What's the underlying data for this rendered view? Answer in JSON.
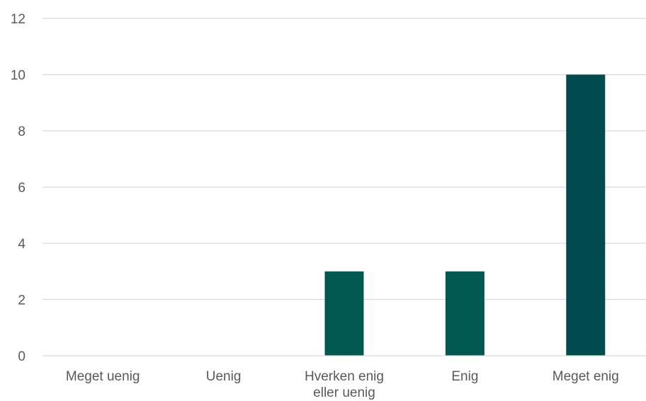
{
  "chart_data": {
    "type": "bar",
    "categories": [
      [
        "Meget uenig"
      ],
      [
        "Uenig"
      ],
      [
        "Hverken enig",
        "eller uenig"
      ],
      [
        "Enig"
      ],
      [
        "Meget enig"
      ]
    ],
    "values": [
      0,
      0,
      3,
      3,
      10
    ],
    "ylim": [
      0,
      12
    ],
    "yticks": [
      "0",
      "2",
      "4",
      "6",
      "8",
      "10",
      "12"
    ],
    "grid": true,
    "legend": "none",
    "colors": [
      "#005850",
      "#005850",
      "#005850",
      "#005850",
      "#004b50"
    ]
  }
}
